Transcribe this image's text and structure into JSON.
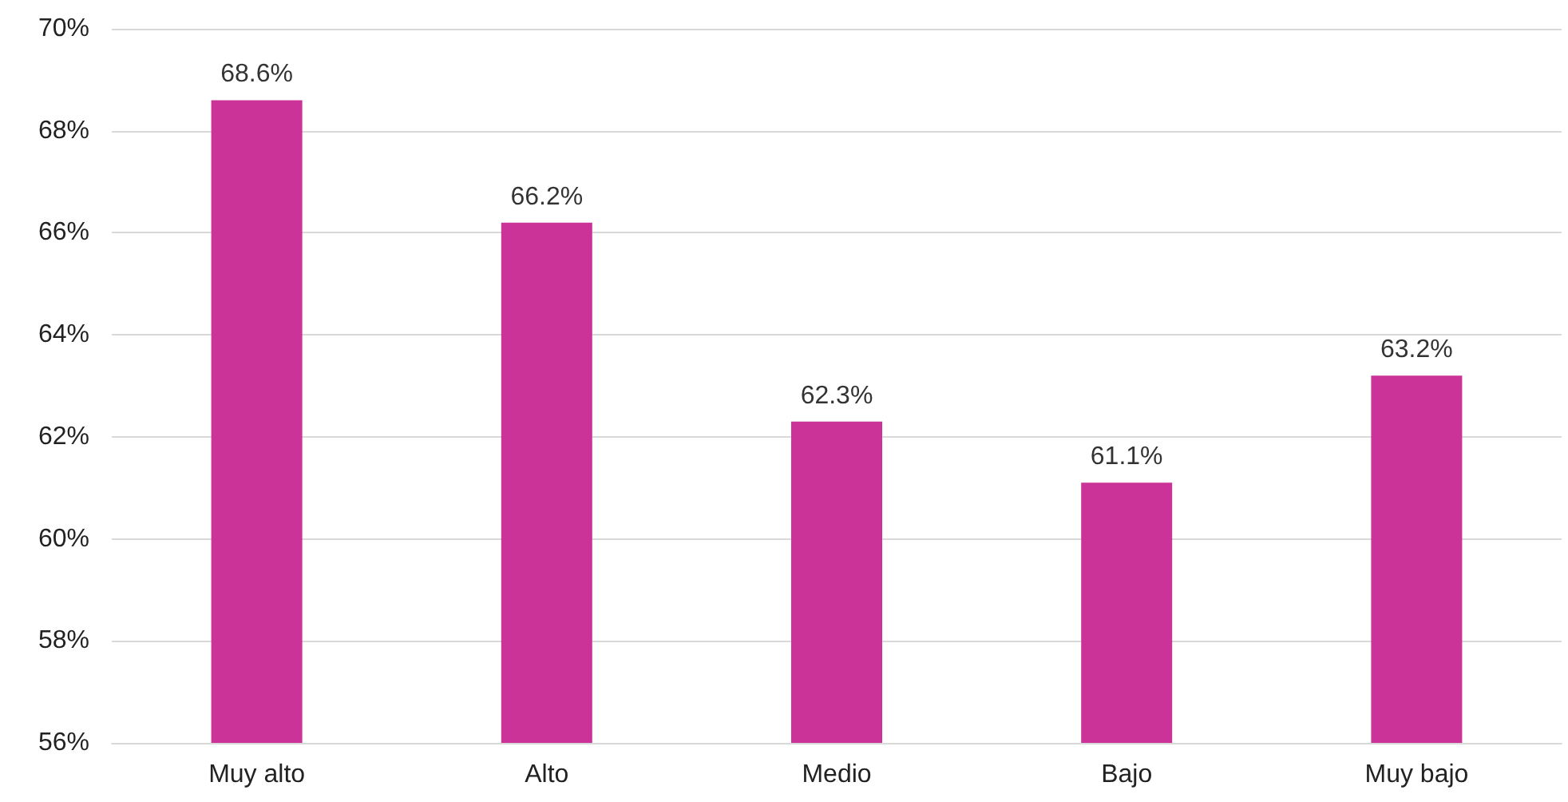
{
  "chart_data": {
    "type": "bar",
    "categories": [
      "Muy alto",
      "Alto",
      "Medio",
      "Bajo",
      "Muy bajo"
    ],
    "values": [
      68.6,
      66.2,
      62.3,
      61.1,
      63.2
    ],
    "value_labels": [
      "68.6%",
      "66.2%",
      "62.3%",
      "61.1%",
      "63.2%"
    ],
    "color": "#cc3399",
    "ylim": [
      56,
      70
    ],
    "yticks": [
      {
        "value": 56,
        "label": "56%"
      },
      {
        "value": 58,
        "label": "58%"
      },
      {
        "value": 60,
        "label": "60%"
      },
      {
        "value": 62,
        "label": "62%"
      },
      {
        "value": 64,
        "label": "64%"
      },
      {
        "value": 66,
        "label": "66%"
      },
      {
        "value": 68,
        "label": "68%"
      },
      {
        "value": 70,
        "label": "70%"
      }
    ],
    "grid": "y"
  }
}
